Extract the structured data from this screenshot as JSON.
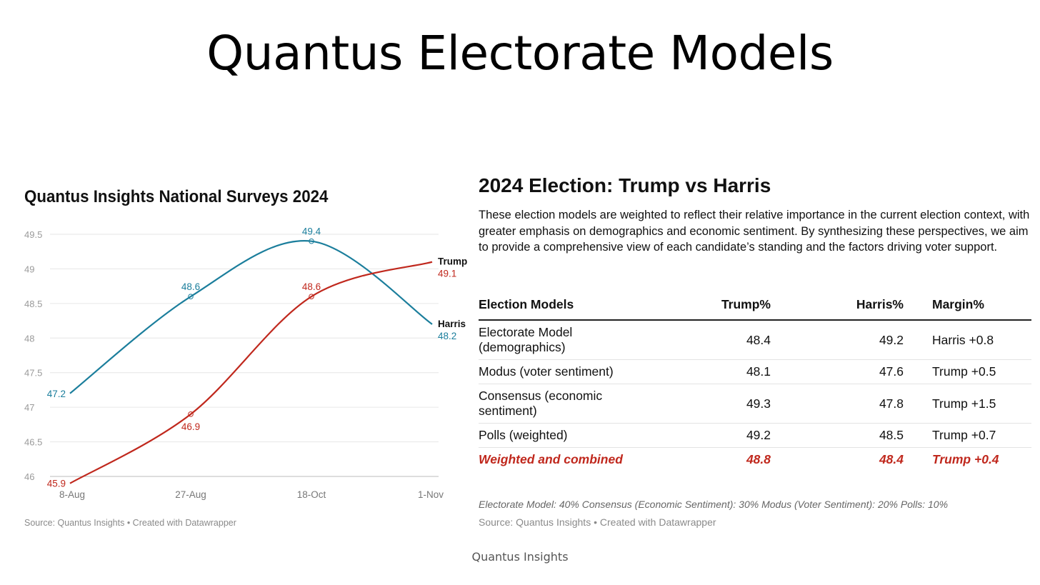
{
  "page": {
    "title": "Quantus Electorate Models",
    "footer": "Quantus Insights"
  },
  "chart_data": {
    "type": "line",
    "title": "Quantus Insights National Surveys 2024",
    "categories": [
      "8-Aug",
      "27-Aug",
      "18-Oct",
      "1-Nov"
    ],
    "series": [
      {
        "name": "Harris",
        "color": "#1b7e9c",
        "values": [
          47.2,
          48.6,
          49.4,
          48.2
        ]
      },
      {
        "name": "Trump",
        "color": "#c0281d",
        "values": [
          45.9,
          46.9,
          48.6,
          49.1
        ]
      }
    ],
    "yticks": [
      "46",
      "46.5",
      "47",
      "47.5",
      "48",
      "48.5",
      "49",
      "49.5"
    ],
    "ylim": [
      46,
      49.5
    ],
    "grid": true,
    "legend": "direct labels at line ends",
    "source": "Source: Quantus Insights  • Created with Datawrapper"
  },
  "table": {
    "title": "2024 Election: Trump vs Harris",
    "description": "These election models are weighted to reflect their relative importance in the current election context, with greater emphasis on demographics and economic sentiment. By synthesizing these perspectives, we aim to provide a comprehensive view of each candidate’s standing and the factors driving voter support.",
    "headers": {
      "model": "Election Models",
      "trump": "Trump%",
      "harris": "Harris%",
      "margin": "Margin%"
    },
    "rows": [
      {
        "model": "Electorate Model (demographics)",
        "trump": "48.4",
        "harris": "49.2",
        "margin": "Harris +0.8"
      },
      {
        "model": "Modus (voter sentiment)",
        "trump": "48.1",
        "harris": "47.6",
        "margin": "Trump +0.5"
      },
      {
        "model": "Consensus (economic sentiment)",
        "trump": "49.3",
        "harris": "47.8",
        "margin": "Trump +1.5"
      },
      {
        "model": "Polls (weighted)",
        "trump": "49.2",
        "harris": "48.5",
        "margin": "Trump +0.7"
      },
      {
        "model": "Weighted and combined",
        "trump": "48.8",
        "harris": "48.4",
        "margin": "Trump +0.4"
      }
    ],
    "note": "Electorate Model: 40% Consensus (Economic Sentiment): 30% Modus (Voter Sentiment): 20% Polls: 10%",
    "source": "Source: Quantus Insights • Created with Datawrapper"
  }
}
